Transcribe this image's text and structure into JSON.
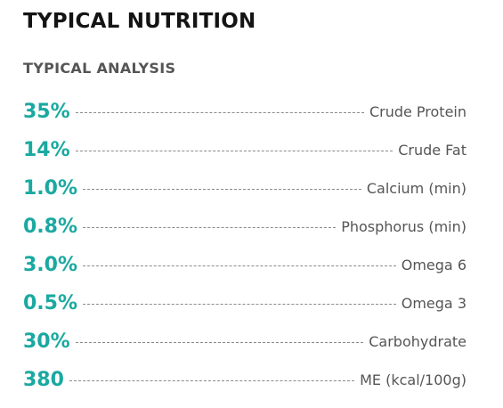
{
  "header": {
    "title": "TYPICAL NUTRITION"
  },
  "section": {
    "title": "TYPICAL ANALYSIS"
  },
  "analysis": [
    {
      "value": "35%",
      "label": "Crude Protein"
    },
    {
      "value": "14%",
      "label": "Crude Fat"
    },
    {
      "value": "1.0%",
      "label": "Calcium (min)"
    },
    {
      "value": "0.8%",
      "label": "Phosphorus (min)"
    },
    {
      "value": "3.0%",
      "label": "Omega 6"
    },
    {
      "value": "0.5%",
      "label": "Omega 3"
    },
    {
      "value": "30%",
      "label": "Carbohydrate"
    },
    {
      "value": "380",
      "label": "ME (kcal/100g)"
    }
  ],
  "colors": {
    "accent": "#1aa9a0",
    "heading": "#141414",
    "text": "#555555",
    "leader": "#8a8a8a"
  }
}
